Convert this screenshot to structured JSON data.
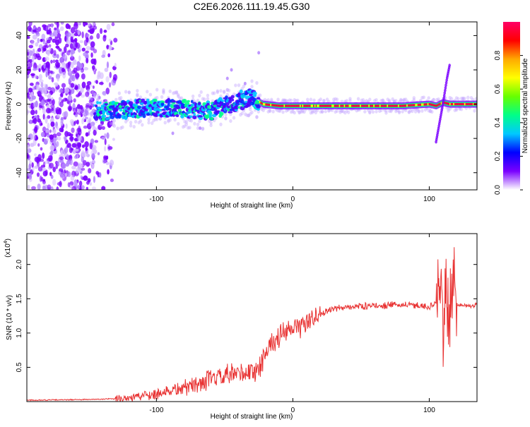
{
  "title": "C2E6.2026.111.19.45.G30",
  "colorbar": {
    "label": "Normalized spectral amplitude",
    "ticks": [
      0.0,
      0.2,
      0.4,
      0.6,
      0.8
    ],
    "tick_labels": [
      "0.0",
      "0.2",
      "0.4",
      "0.6",
      "0.8"
    ],
    "range": [
      0,
      1
    ],
    "stops": [
      "#ffffff",
      "#7a00ff",
      "#0000ff",
      "#00c8ff",
      "#00ff88",
      "#66ff00",
      "#ffff00",
      "#ffaa00",
      "#ff0000",
      "#ff0066"
    ]
  },
  "chart_data": [
    {
      "type": "heatmap",
      "xlabel": "Height of straight line (km)",
      "ylabel": "Frequency (Hz)",
      "xlim": [
        -195,
        135
      ],
      "ylim": [
        -50,
        48
      ],
      "xticks": [
        -100,
        0,
        100
      ],
      "xtick_labels": [
        "-100",
        "0",
        "100"
      ],
      "yticks": [
        -40,
        -20,
        0,
        20,
        40
      ],
      "ytick_labels": [
        "-40",
        "-20",
        "0",
        "20",
        "40"
      ],
      "ridge": {
        "x": [
          -140,
          -120,
          -100,
          -80,
          -60,
          -40,
          -30,
          -22,
          -10,
          0,
          40,
          80,
          100,
          105,
          110,
          115,
          135
        ],
        "y": [
          -4,
          -3,
          -2,
          -3,
          -4,
          2,
          4,
          0,
          -1,
          -1,
          -1,
          -1,
          0,
          -1,
          1,
          0,
          0
        ]
      },
      "chirp": {
        "x": [
          105,
          110,
          113,
          115
        ],
        "y": [
          -22,
          0,
          15,
          23
        ]
      }
    },
    {
      "type": "line",
      "xlabel": "Height of straight line (km)",
      "ylabel": "SNR (10 * v/v)",
      "yscale_note": "(x10",
      "yscale_exp": "4",
      "xlim": [
        -195,
        135
      ],
      "ylim": [
        0,
        2.45
      ],
      "xticks": [
        -100,
        0,
        100
      ],
      "xtick_labels": [
        "-100",
        "0",
        "100"
      ],
      "yticks": [
        0.5,
        1.0,
        1.5,
        2.0
      ],
      "ytick_labels": [
        "0.5",
        "1.0",
        "1.5",
        "2.0"
      ],
      "color": "#e83232",
      "series": [
        {
          "name": "SNR",
          "x": [
            -195,
            -150,
            -130,
            -120,
            -100,
            -80,
            -60,
            -40,
            -25,
            -20,
            -15,
            -10,
            0,
            10,
            20,
            30,
            40,
            60,
            80,
            95,
            100,
            105,
            108,
            110,
            112,
            115,
            118,
            120,
            125,
            135
          ],
          "y": [
            0.02,
            0.03,
            0.04,
            0.06,
            0.12,
            0.2,
            0.32,
            0.4,
            0.45,
            0.75,
            0.85,
            0.95,
            1.05,
            1.15,
            1.28,
            1.35,
            1.38,
            1.4,
            1.41,
            1.4,
            1.38,
            1.45,
            1.6,
            1.0,
            1.7,
            1.2,
            1.9,
            1.42,
            1.4,
            1.4
          ]
        }
      ]
    }
  ]
}
